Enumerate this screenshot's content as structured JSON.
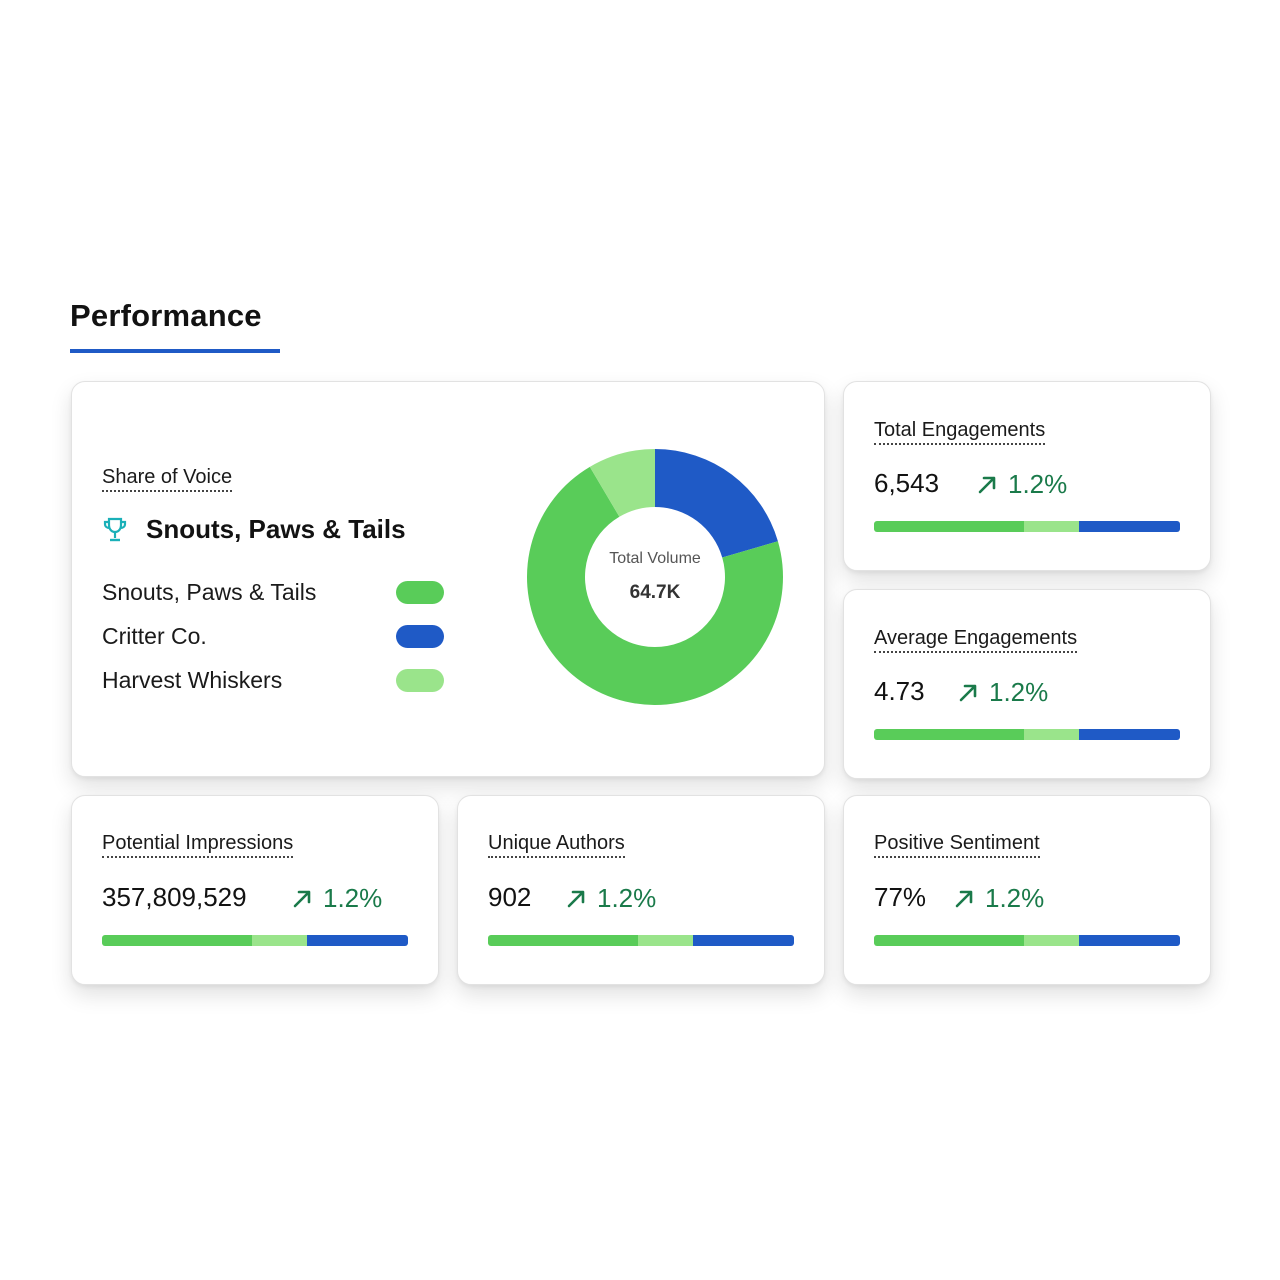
{
  "page": {
    "title": "Performance"
  },
  "colors": {
    "accent": "#1f5ac6",
    "brand_green": "#59cc59",
    "brand_blue": "#1f5ac6",
    "light_green": "#9ae48b",
    "delta_green": "#1a7a4a",
    "trophy": "#1ab0b8"
  },
  "share_of_voice": {
    "label": "Share of Voice",
    "trophy_icon": "trophy-icon",
    "leader": "Snouts, Paws & Tails",
    "legend": [
      {
        "name": "Snouts, Paws & Tails",
        "color": "#59cc59"
      },
      {
        "name": "Critter Co.",
        "color": "#1f5ac6"
      },
      {
        "name": "Harvest Whiskers",
        "color": "#9ae48b"
      }
    ],
    "donut": {
      "center_label": "Total Volume",
      "center_value": "64.7K"
    }
  },
  "chart_data": {
    "type": "pie",
    "variant": "donut",
    "categories": [
      "Critter Co.",
      "Snouts, Paws & Tails",
      "Harvest Whiskers"
    ],
    "values": [
      20.5,
      71,
      8.5
    ],
    "colors": [
      "#1f5ac6",
      "#59cc59",
      "#9ae48b"
    ],
    "start_angle_deg": 0,
    "direction": "clockwise"
  },
  "metrics": [
    {
      "id": "total-engagements",
      "label": "Total Engagements",
      "value": "6,543",
      "delta": "1.2%",
      "bar": [
        0.49,
        0.18,
        0.33
      ]
    },
    {
      "id": "average-engagements",
      "label": "Average Engagements",
      "value": "4.73",
      "delta": "1.2%",
      "bar": [
        0.49,
        0.18,
        0.33
      ]
    },
    {
      "id": "potential-impressions",
      "label": "Potential Impressions",
      "value": "357,809,529",
      "delta": "1.2%",
      "bar": [
        0.49,
        0.18,
        0.33
      ]
    },
    {
      "id": "unique-authors",
      "label": "Unique Authors",
      "value": "902",
      "delta": "1.2%",
      "bar": [
        0.49,
        0.18,
        0.33
      ]
    },
    {
      "id": "positive-sentiment",
      "label": "Positive Sentiment",
      "value": "77%",
      "delta": "1.2%",
      "bar": [
        0.49,
        0.18,
        0.33
      ]
    }
  ]
}
